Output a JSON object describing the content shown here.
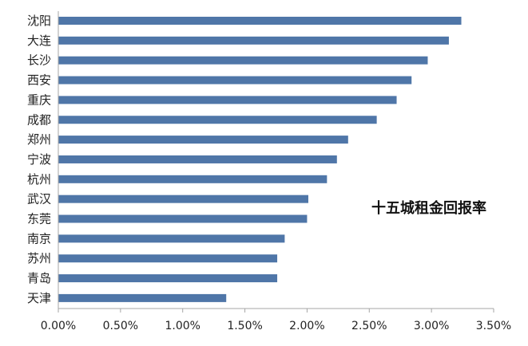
{
  "chart_data": {
    "type": "bar",
    "orientation": "horizontal",
    "title": "十五城租金回报率",
    "categories": [
      "沈阳",
      "大连",
      "长沙",
      "西安",
      "重庆",
      "成都",
      "郑州",
      "宁波",
      "杭州",
      "武汉",
      "东莞",
      "南京",
      "苏州",
      "青岛",
      "天津"
    ],
    "values": [
      3.24,
      3.14,
      2.97,
      2.84,
      2.72,
      2.56,
      2.33,
      2.24,
      2.16,
      2.01,
      2.0,
      1.82,
      1.76,
      1.76,
      1.35
    ],
    "value_unit": "%",
    "xlim": [
      0,
      3.5
    ],
    "xticks": [
      "0.00%",
      "0.50%",
      "1.00%",
      "1.50%",
      "2.00%",
      "2.50%",
      "3.00%",
      "3.50%"
    ],
    "grid": false,
    "bar_color": "#4F76A8",
    "axis_color": "#A6A6A6"
  }
}
